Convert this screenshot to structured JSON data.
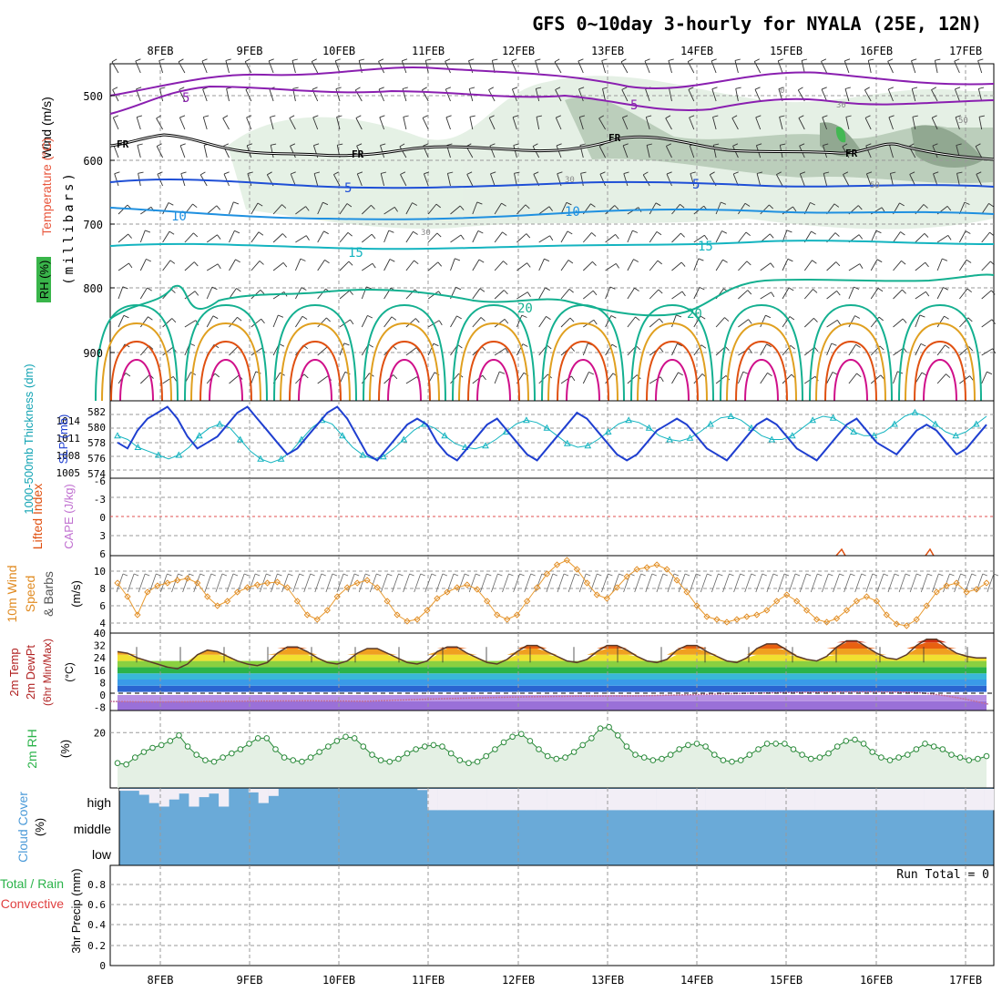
{
  "title": "GFS 0~10day 3-hourly for NYALA (25E, 12N)",
  "date_labels": [
    "8FEB",
    "9FEB",
    "10FEB",
    "11FEB",
    "12FEB",
    "13FEB",
    "14FEB",
    "15FEB",
    "16FEB",
    "17FEB"
  ],
  "colors": {
    "grid": "#9a9a9a",
    "purple": "#8a1fb0",
    "blue": "#1f4fd6",
    "midblue": "#1f90e0",
    "cyan": "#14b4c0",
    "teal": "#14b090",
    "orange": "#e0a020",
    "red": "#e05010",
    "pink": "#d0108a",
    "rh_green": "#2bb34a",
    "cloud": "#6aaad8",
    "lavender": "#f2eef6"
  },
  "panels": {
    "upper": {
      "labels": {
        "wind": "Wind (m/s)",
        "temp": "Temperature (°C)",
        "rh": "RH (%)",
        "pressure": "(millibars)"
      },
      "y_ticks": [
        "500",
        "600",
        "700",
        "800",
        "900"
      ],
      "contour_labels": {
        "fr": "FR",
        "five": "5",
        "ten": "10",
        "fifteen": "15",
        "twenty": "20",
        "rh30": "30",
        "rh50": "50",
        "rh0": "0"
      }
    },
    "thickness": {
      "labels": {
        "thick": "1000-500mb Thickness (dm)",
        "slp": "SLP (mb)"
      },
      "left_ticks": [
        "582",
        "580",
        "578",
        "576",
        "574"
      ],
      "right_ticks": [
        "1014",
        "1011",
        "1008",
        "1005"
      ],
      "slp": [
        1009,
        1008,
        1011,
        1013,
        1014,
        1015,
        1013,
        1010,
        1008,
        1009,
        1010,
        1012,
        1014,
        1015,
        1013,
        1011,
        1009,
        1007,
        1008,
        1010,
        1012,
        1014,
        1015,
        1013,
        1010,
        1007,
        1006,
        1008,
        1010,
        1012,
        1013,
        1012,
        1009,
        1007,
        1006,
        1008,
        1010,
        1012,
        1013,
        1011,
        1009,
        1007,
        1006,
        1008,
        1010,
        1012,
        1014,
        1013,
        1011,
        1009,
        1007,
        1006,
        1007,
        1009,
        1011,
        1012,
        1013,
        1012,
        1010,
        1008,
        1007,
        1006,
        1008,
        1010,
        1012,
        1013,
        1012,
        1010,
        1008,
        1007,
        1006,
        1008,
        1010,
        1012,
        1013,
        1011,
        1009,
        1008,
        1007,
        1009,
        1011,
        1012,
        1011,
        1009,
        1007,
        1008,
        1010,
        1012
      ],
      "thickness": [
        578.5,
        578,
        577,
        576.5,
        576,
        575.5,
        576,
        577,
        578.5,
        579.5,
        580,
        579.5,
        578,
        576.5,
        575.5,
        575,
        575.5,
        576.5,
        578,
        579.5,
        580.5,
        580,
        578.5,
        577,
        576,
        575.5,
        575.8,
        576.8,
        578,
        579.2,
        580,
        579.5,
        578.5,
        577.5,
        577,
        576.8,
        577.2,
        578,
        579,
        580,
        580.5,
        580.2,
        579.5,
        578.5,
        577.5,
        577,
        577.2,
        578,
        579,
        580,
        580.5,
        580.2,
        579.5,
        578.5,
        578,
        577.8,
        578.2,
        579,
        580,
        580.8,
        581,
        580.5,
        579.5,
        578.5,
        578,
        578,
        578.5,
        579.5,
        580.5,
        581,
        580.8,
        580,
        579,
        578.5,
        578.5,
        579,
        580,
        581,
        581.5,
        581,
        580,
        579,
        578.5,
        579,
        580,
        581
      ]
    },
    "stability": {
      "labels": {
        "li": "Lifted Index",
        "cape": "CAPE (J/kg)"
      },
      "y_ticks": [
        "-6",
        "-3",
        "0",
        "3",
        "6"
      ]
    },
    "wind10": {
      "labels": {
        "w1": "10m Wind",
        "w2": "Speed",
        "w3": "& Barbs",
        "unit": "(m/s)"
      },
      "y_ticks": [
        "10",
        "8",
        "6",
        "4"
      ],
      "speed": [
        8.5,
        7,
        5,
        7.5,
        8.2,
        8.5,
        8.8,
        9,
        8.5,
        7,
        6,
        6.5,
        7.5,
        8,
        8.3,
        8.5,
        8.6,
        8,
        6.5,
        5,
        4.5,
        5.5,
        7,
        8,
        8.5,
        8.8,
        8,
        6.5,
        5,
        4.3,
        4.5,
        5.5,
        6.8,
        7.5,
        8,
        8.3,
        7.8,
        6.5,
        5,
        4.5,
        5,
        6.5,
        8,
        9.5,
        10.5,
        11,
        10,
        8.5,
        7.2,
        6.8,
        8,
        9.2,
        10,
        10.2,
        10.5,
        10,
        8.8,
        7.5,
        6,
        4.8,
        4.5,
        4.2,
        4.5,
        4.8,
        5,
        5.5,
        6.5,
        7.2,
        6.5,
        5.5,
        4.5,
        4.2,
        4.6,
        5.5,
        6.5,
        7,
        6.5,
        5,
        4,
        3.8,
        4.5,
        6,
        7.5,
        8.2,
        8.5,
        7.5,
        7.8,
        8.5
      ]
    },
    "temp2m": {
      "labels": {
        "a": "2m Temp",
        "b": "2m DewPt",
        "c": "(6hr Min/Max)",
        "unit": "(°C)"
      },
      "y_ticks": [
        "40",
        "32",
        "24",
        "16",
        "8",
        "0",
        "-8"
      ],
      "temp": [
        28,
        27,
        24,
        22,
        20,
        18,
        17,
        20,
        26,
        29,
        28,
        25,
        22,
        20,
        19,
        21,
        27,
        31,
        31,
        28,
        24,
        21,
        20,
        22,
        27,
        30,
        30,
        27,
        24,
        21,
        20,
        22,
        28,
        31,
        31,
        27,
        24,
        21,
        20,
        23,
        28,
        32,
        32,
        28,
        25,
        22,
        21,
        23,
        28,
        32,
        32,
        29,
        25,
        22,
        21,
        23,
        29,
        32,
        32,
        28,
        25,
        22,
        21,
        24,
        30,
        33,
        33,
        29,
        25,
        23,
        22,
        25,
        31,
        35,
        35,
        31,
        27,
        24,
        23,
        26,
        32,
        36,
        36,
        31,
        27,
        25,
        24,
        24
      ]
    },
    "rh2m": {
      "labels": {
        "a": "2m RH",
        "unit": "(%)"
      },
      "y_ticks": [
        "20"
      ],
      "rh": [
        9,
        8.5,
        11,
        13,
        14.5,
        15.5,
        17,
        19,
        15,
        12,
        10,
        9.5,
        11,
        12.5,
        14,
        16,
        18,
        18,
        14,
        11,
        10,
        9.5,
        11,
        13,
        15,
        17,
        18.5,
        18,
        15,
        12,
        10,
        9.5,
        10.5,
        12.5,
        14,
        15,
        15.5,
        15,
        12.5,
        10,
        9,
        9.5,
        11.5,
        14,
        16.5,
        18.5,
        19.5,
        17,
        14,
        11.5,
        10.5,
        11,
        13,
        15.5,
        18,
        21.5,
        22,
        19,
        15,
        12,
        11,
        10,
        10.5,
        12,
        14,
        15.5,
        16,
        15,
        12,
        10,
        9.5,
        10,
        12,
        14,
        16,
        16,
        16,
        14,
        12,
        10.5,
        11,
        12.5,
        15,
        17,
        17.5,
        16,
        13,
        11,
        10,
        11,
        12,
        14,
        16,
        15,
        14,
        12,
        11,
        10,
        10.5,
        11.5
      ]
    },
    "cloud": {
      "labels": {
        "a": "Cloud Cover",
        "unit": "(%)",
        "high": "high",
        "middle": "middle",
        "low": "low"
      },
      "high_cover": [
        0.92,
        0.92,
        0.75,
        0.4,
        0.25,
        0.55,
        0.8,
        0.25,
        0.65,
        0.8,
        0.25,
        1,
        1,
        0.85,
        0.4,
        0.7,
        1,
        1,
        1,
        1,
        1,
        1,
        1,
        1,
        1,
        1,
        1,
        1,
        1,
        1,
        0.95,
        0.1,
        0.1,
        0.1,
        0.1,
        0.1,
        0.1,
        0.1,
        0.1,
        0.1,
        0.1,
        0.1,
        0.1,
        0.1,
        0.1,
        0.1,
        0.1,
        0.1,
        0.1,
        0.1,
        0.1,
        0.1,
        0.1,
        0.1,
        0.1,
        0.1,
        0.1,
        0.1,
        0.1,
        0.1,
        0.1,
        0.1,
        0.1,
        0.1,
        0.1,
        0.1,
        0.1,
        0.1,
        0.1,
        0.1,
        0.1,
        0.1,
        0.1,
        0.1,
        0.1,
        0.1,
        0.1,
        0.1,
        0.1,
        0.1,
        0.1,
        0.1,
        0.1,
        0.1,
        0.1,
        0.1,
        0.1,
        0.1
      ]
    },
    "precip": {
      "labels": {
        "a": "Total / Rain",
        "b": "Convective",
        "c": "3hr Precip (mm)",
        "run": "Run Total = 0"
      },
      "y_ticks": [
        "0.8",
        "0.6",
        "0.4",
        "0.2",
        "0"
      ]
    }
  },
  "chart_data": {
    "type": "line",
    "title": "GFS 0~10day 3-hourly for NYALA (25E, 12N)",
    "x_categories": [
      "8FEB",
      "9FEB",
      "10FEB",
      "11FEB",
      "12FEB",
      "13FEB",
      "14FEB",
      "15FEB",
      "16FEB",
      "17FEB"
    ],
    "series": [
      {
        "name": "SLP (mb)",
        "unit": "mb"
      },
      {
        "name": "1000-500mb Thickness (dm)",
        "unit": "dm"
      },
      {
        "name": "10m Wind Speed",
        "unit": "m/s"
      },
      {
        "name": "2m Temp",
        "unit": "°C"
      },
      {
        "name": "2m RH",
        "unit": "%"
      }
    ],
    "ylim_slp": [
      1004,
      1016
    ],
    "ylim_thickness": [
      573,
      583
    ],
    "ylim_wind": [
      3,
      11
    ],
    "ylim_temp": [
      -10,
      40
    ],
    "ylim_rh": [
      0,
      28
    ],
    "precip_run_total": "Run Total = 0",
    "grid": true
  }
}
